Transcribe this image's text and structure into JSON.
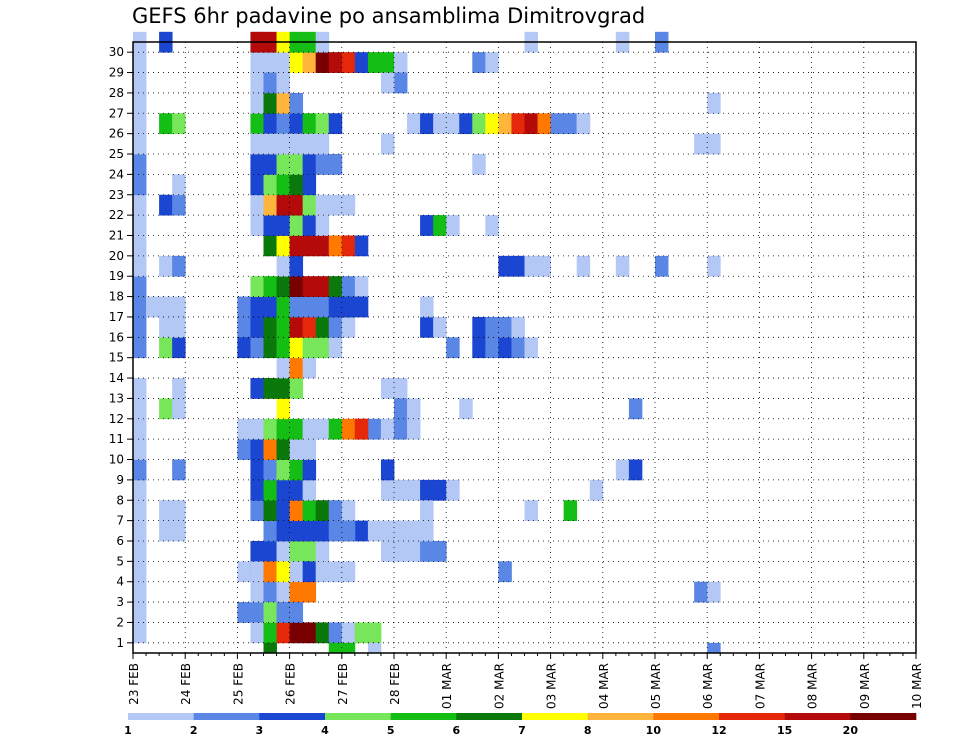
{
  "chart_data": {
    "type": "heatmap",
    "title": "GEFS 6hr padavine po ansamblima Dimitrovgrad",
    "xlabel": "",
    "ylabel": "",
    "y_ticks": [
      "1",
      "2",
      "3",
      "4",
      "5",
      "6",
      "7",
      "8",
      "9",
      "10",
      "11",
      "12",
      "13",
      "14",
      "15",
      "16",
      "17",
      "18",
      "19",
      "20",
      "21",
      "22",
      "23",
      "24",
      "25",
      "26",
      "27",
      "28",
      "29",
      "30"
    ],
    "x_ticks": [
      "23 FEB",
      "24 FEB",
      "25 FEB",
      "26 FEB",
      "27 FEB",
      "28 FEB",
      "01 MAR",
      "02 MAR",
      "03 MAR",
      "04 MAR",
      "05 MAR",
      "06 MAR",
      "07 MAR",
      "08 MAR",
      "09 MAR",
      "10 MAR"
    ],
    "x_range": [
      0,
      60
    ],
    "y_range": [
      1,
      30
    ],
    "time_step": "6hr",
    "grid": true,
    "colorbar": {
      "levels": [
        "1",
        "2",
        "3",
        "4",
        "5",
        "6",
        "7",
        "8",
        "10",
        "12",
        "15",
        "20"
      ],
      "colors": [
        "#b4c8f5",
        "#5a86e6",
        "#1a46d2",
        "#78e65a",
        "#14be14",
        "#0a780a",
        "#ffff00",
        "#ffb43c",
        "#ff7800",
        "#e6280a",
        "#b40a0a",
        "#780000"
      ]
    },
    "cells": [
      [
        0,
        1,
        1
      ],
      [
        0,
        2,
        1
      ],
      [
        0,
        3,
        1
      ],
      [
        0,
        4,
        1
      ],
      [
        0,
        5,
        1
      ],
      [
        0,
        6,
        1
      ],
      [
        0,
        7,
        1
      ],
      [
        0,
        8,
        1
      ],
      [
        0,
        9,
        2
      ],
      [
        0,
        10,
        1
      ],
      [
        0,
        11,
        1
      ],
      [
        0,
        12,
        1
      ],
      [
        0,
        13,
        1
      ],
      [
        0,
        15,
        2
      ],
      [
        0,
        16,
        2
      ],
      [
        0,
        17,
        2
      ],
      [
        0,
        18,
        2
      ],
      [
        0,
        19,
        1
      ],
      [
        0,
        20,
        1
      ],
      [
        0,
        21,
        1
      ],
      [
        0,
        22,
        1
      ],
      [
        0,
        23,
        2
      ],
      [
        0,
        24,
        2
      ],
      [
        0,
        25,
        1
      ],
      [
        0,
        26,
        1
      ],
      [
        0,
        27,
        1
      ],
      [
        0,
        28,
        1
      ],
      [
        0,
        29,
        1
      ],
      [
        0,
        30,
        1
      ],
      [
        2,
        7,
        1
      ],
      [
        2,
        6,
        1
      ],
      [
        2,
        12,
        4
      ],
      [
        2,
        15,
        4
      ],
      [
        2,
        16,
        1
      ],
      [
        2,
        17,
        1
      ],
      [
        2,
        19,
        1
      ],
      [
        2,
        22,
        3
      ],
      [
        2,
        26,
        5
      ],
      [
        2,
        30,
        3
      ],
      [
        3,
        6,
        1
      ],
      [
        3,
        7,
        1
      ],
      [
        3,
        9,
        2
      ],
      [
        3,
        12,
        1
      ],
      [
        3,
        13,
        1
      ],
      [
        3,
        15,
        3
      ],
      [
        3,
        16,
        1
      ],
      [
        3,
        17,
        1
      ],
      [
        3,
        19,
        2
      ],
      [
        3,
        22,
        2
      ],
      [
        3,
        23,
        1
      ],
      [
        3,
        26,
        4
      ],
      [
        1,
        17,
        1
      ],
      [
        8,
        10,
        2
      ],
      [
        8,
        11,
        1
      ],
      [
        8,
        17,
        2
      ],
      [
        8,
        16,
        2
      ],
      [
        8,
        15,
        3
      ],
      [
        8,
        4,
        1
      ],
      [
        8,
        2,
        2
      ],
      [
        9,
        11,
        1
      ],
      [
        9,
        18,
        1
      ],
      [
        9,
        17,
        1
      ],
      [
        9,
        2,
        2
      ],
      [
        9,
        4,
        3
      ],
      [
        9,
        9,
        1
      ],
      [
        9,
        22,
        1
      ],
      [
        9,
        24,
        2
      ],
      [
        9,
        30,
        1
      ],
      [
        9,
        5,
        3
      ],
      [
        10,
        5,
        3
      ],
      [
        11,
        5,
        1
      ],
      [
        12,
        5,
        4
      ],
      [
        13,
        5,
        4
      ],
      [
        14,
        5,
        1
      ],
      [
        9,
        29,
        1
      ],
      [
        10,
        29,
        1
      ],
      [
        11,
        29,
        1
      ],
      [
        12,
        29,
        7
      ],
      [
        13,
        29,
        8
      ],
      [
        14,
        29,
        12
      ],
      [
        15,
        29,
        11
      ],
      [
        16,
        29,
        10
      ],
      [
        17,
        29,
        3
      ],
      [
        18,
        29,
        5
      ],
      [
        19,
        29,
        5
      ],
      [
        20,
        29,
        1
      ],
      [
        9,
        26,
        5
      ],
      [
        10,
        26,
        3
      ],
      [
        11,
        26,
        2
      ],
      [
        12,
        26,
        3
      ],
      [
        13,
        26,
        5
      ],
      [
        14,
        26,
        4
      ],
      [
        15,
        26,
        3
      ],
      [
        9,
        30,
        11
      ],
      [
        10,
        30,
        11
      ],
      [
        11,
        30,
        7
      ],
      [
        12,
        30,
        5
      ],
      [
        13,
        30,
        5
      ],
      [
        14,
        30,
        1
      ],
      [
        9,
        1,
        1
      ],
      [
        10,
        1,
        5
      ],
      [
        11,
        1,
        10
      ],
      [
        12,
        1,
        12
      ],
      [
        13,
        1,
        12
      ],
      [
        14,
        1,
        6
      ],
      [
        15,
        1,
        2
      ],
      [
        16,
        1,
        1
      ],
      [
        17,
        1,
        4
      ],
      [
        18,
        1,
        4
      ],
      [
        9,
        3,
        1
      ],
      [
        10,
        3,
        2
      ],
      [
        11,
        3,
        1
      ],
      [
        12,
        3,
        9
      ],
      [
        13,
        3,
        9
      ],
      [
        9,
        4,
        1
      ],
      [
        10,
        4,
        9
      ],
      [
        11,
        4,
        7
      ],
      [
        12,
        4,
        1
      ],
      [
        13,
        4,
        3
      ],
      [
        14,
        4,
        1
      ],
      [
        15,
        4,
        1
      ],
      [
        16,
        4,
        1
      ],
      [
        10,
        6,
        2
      ],
      [
        11,
        6,
        3
      ],
      [
        12,
        6,
        3
      ],
      [
        13,
        6,
        3
      ],
      [
        14,
        6,
        3
      ],
      [
        15,
        6,
        2
      ],
      [
        16,
        6,
        2
      ],
      [
        17,
        6,
        3
      ],
      [
        18,
        6,
        1
      ],
      [
        19,
        6,
        1
      ],
      [
        20,
        6,
        1
      ],
      [
        9,
        7,
        2
      ],
      [
        10,
        7,
        6
      ],
      [
        11,
        7,
        3
      ],
      [
        12,
        7,
        9
      ],
      [
        13,
        7,
        5
      ],
      [
        14,
        7,
        6
      ],
      [
        15,
        7,
        2
      ],
      [
        16,
        7,
        1
      ],
      [
        9,
        8,
        3
      ],
      [
        10,
        8,
        5
      ],
      [
        11,
        8,
        3
      ],
      [
        12,
        8,
        3
      ],
      [
        13,
        8,
        1
      ],
      [
        9,
        9,
        3
      ],
      [
        10,
        9,
        2
      ],
      [
        11,
        9,
        4
      ],
      [
        12,
        9,
        5
      ],
      [
        13,
        9,
        3
      ],
      [
        9,
        10,
        3
      ],
      [
        10,
        10,
        9
      ],
      [
        11,
        10,
        6
      ],
      [
        12,
        10,
        1
      ],
      [
        13,
        10,
        1
      ],
      [
        9,
        11,
        1
      ],
      [
        10,
        11,
        4
      ],
      [
        11,
        11,
        5
      ],
      [
        12,
        11,
        5
      ],
      [
        13,
        11,
        1
      ],
      [
        14,
        11,
        1
      ],
      [
        15,
        11,
        5
      ],
      [
        16,
        11,
        9
      ],
      [
        17,
        11,
        10
      ],
      [
        18,
        11,
        2
      ],
      [
        19,
        11,
        1
      ],
      [
        20,
        11,
        1
      ],
      [
        11,
        12,
        7
      ],
      [
        9,
        13,
        3
      ],
      [
        10,
        13,
        6
      ],
      [
        11,
        13,
        6
      ],
      [
        12,
        13,
        4
      ],
      [
        11,
        14,
        1
      ],
      [
        12,
        14,
        9
      ],
      [
        13,
        14,
        1
      ],
      [
        9,
        15,
        2
      ],
      [
        10,
        15,
        6
      ],
      [
        11,
        15,
        5
      ],
      [
        12,
        15,
        7
      ],
      [
        13,
        15,
        4
      ],
      [
        14,
        15,
        4
      ],
      [
        15,
        15,
        1
      ],
      [
        9,
        16,
        3
      ],
      [
        10,
        16,
        6
      ],
      [
        11,
        16,
        5
      ],
      [
        12,
        16,
        11
      ],
      [
        13,
        16,
        10
      ],
      [
        14,
        16,
        6
      ],
      [
        15,
        16,
        2
      ],
      [
        16,
        16,
        1
      ],
      [
        9,
        17,
        3
      ],
      [
        10,
        17,
        3
      ],
      [
        11,
        17,
        5
      ],
      [
        12,
        17,
        2
      ],
      [
        13,
        17,
        2
      ],
      [
        14,
        17,
        2
      ],
      [
        15,
        17,
        3
      ],
      [
        16,
        17,
        3
      ],
      [
        17,
        17,
        1
      ],
      [
        9,
        18,
        4
      ],
      [
        10,
        18,
        5
      ],
      [
        11,
        18,
        6
      ],
      [
        12,
        18,
        12
      ],
      [
        13,
        18,
        11
      ],
      [
        14,
        18,
        11
      ],
      [
        15,
        18,
        6
      ],
      [
        16,
        18,
        2
      ],
      [
        17,
        18,
        1
      ],
      [
        11,
        19,
        1
      ],
      [
        12,
        19,
        3
      ],
      [
        10,
        20,
        6
      ],
      [
        11,
        20,
        7
      ],
      [
        12,
        20,
        11
      ],
      [
        13,
        20,
        11
      ],
      [
        14,
        20,
        11
      ],
      [
        15,
        20,
        9
      ],
      [
        16,
        20,
        10
      ],
      [
        17,
        20,
        3
      ],
      [
        9,
        21,
        1
      ],
      [
        10,
        21,
        3
      ],
      [
        11,
        21,
        3
      ],
      [
        12,
        21,
        4
      ],
      [
        13,
        21,
        3
      ],
      [
        14,
        21,
        1
      ],
      [
        9,
        22,
        1
      ],
      [
        10,
        22,
        8
      ],
      [
        11,
        22,
        11
      ],
      [
        12,
        22,
        11
      ],
      [
        13,
        22,
        4
      ],
      [
        14,
        22,
        1
      ],
      [
        15,
        22,
        1
      ],
      [
        16,
        22,
        1
      ],
      [
        9,
        23,
        3
      ],
      [
        10,
        23,
        4
      ],
      [
        11,
        23,
        5
      ],
      [
        12,
        23,
        6
      ],
      [
        13,
        23,
        3
      ],
      [
        9,
        24,
        3
      ],
      [
        10,
        24,
        3
      ],
      [
        11,
        24,
        4
      ],
      [
        12,
        24,
        4
      ],
      [
        13,
        24,
        3
      ],
      [
        14,
        24,
        2
      ],
      [
        15,
        24,
        2
      ],
      [
        9,
        25,
        1
      ],
      [
        10,
        25,
        1
      ],
      [
        11,
        25,
        1
      ],
      [
        12,
        25,
        1
      ],
      [
        13,
        25,
        1
      ],
      [
        14,
        25,
        1
      ],
      [
        9,
        27,
        1
      ],
      [
        10,
        27,
        6
      ],
      [
        11,
        27,
        8
      ],
      [
        12,
        27,
        2
      ],
      [
        9,
        28,
        1
      ],
      [
        10,
        28,
        2
      ],
      [
        11,
        28,
        1
      ],
      [
        10,
        2,
        4
      ],
      [
        11,
        2,
        2
      ],
      [
        12,
        2,
        2
      ],
      [
        10,
        0,
        6
      ],
      [
        15,
        0,
        5
      ],
      [
        16,
        0,
        5
      ],
      [
        18,
        0,
        1
      ],
      [
        16,
        17,
        3
      ],
      [
        17,
        17,
        3
      ],
      [
        16,
        6,
        2
      ],
      [
        20,
        6,
        1
      ],
      [
        21,
        6,
        1
      ],
      [
        17,
        11,
        10
      ],
      [
        19,
        5,
        1
      ],
      [
        20,
        5,
        1
      ],
      [
        21,
        5,
        1
      ],
      [
        22,
        5,
        2
      ],
      [
        23,
        5,
        2
      ],
      [
        19,
        8,
        1
      ],
      [
        20,
        8,
        1
      ],
      [
        21,
        8,
        1
      ],
      [
        22,
        8,
        3
      ],
      [
        23,
        8,
        3
      ],
      [
        24,
        8,
        1
      ],
      [
        19,
        9,
        3
      ],
      [
        19,
        11,
        1
      ],
      [
        19,
        13,
        1
      ],
      [
        20,
        13,
        1
      ],
      [
        20,
        12,
        2
      ],
      [
        21,
        12,
        1
      ],
      [
        20,
        11,
        2
      ],
      [
        21,
        11,
        1
      ],
      [
        19,
        25,
        1
      ],
      [
        20,
        28,
        2
      ],
      [
        19,
        28,
        1
      ],
      [
        22,
        7,
        1
      ],
      [
        22,
        6,
        1
      ],
      [
        22,
        16,
        3
      ],
      [
        23,
        16,
        1
      ],
      [
        22,
        17,
        1
      ],
      [
        22,
        21,
        3
      ],
      [
        23,
        21,
        5
      ],
      [
        24,
        21,
        1
      ],
      [
        21,
        26,
        1
      ],
      [
        22,
        26,
        3
      ],
      [
        23,
        26,
        1
      ],
      [
        24,
        26,
        1
      ],
      [
        25,
        26,
        3
      ],
      [
        26,
        26,
        4
      ],
      [
        27,
        26,
        7
      ],
      [
        28,
        26,
        8
      ],
      [
        29,
        26,
        10
      ],
      [
        30,
        26,
        11
      ],
      [
        31,
        26,
        9
      ],
      [
        32,
        26,
        2
      ],
      [
        33,
        26,
        2
      ],
      [
        34,
        26,
        1
      ],
      [
        24,
        15,
        2
      ],
      [
        26,
        15,
        3
      ],
      [
        27,
        15,
        2
      ],
      [
        28,
        15,
        3
      ],
      [
        29,
        15,
        2
      ],
      [
        30,
        15,
        1
      ],
      [
        26,
        16,
        3
      ],
      [
        27,
        16,
        2
      ],
      [
        28,
        16,
        2
      ],
      [
        29,
        16,
        1
      ],
      [
        26,
        29,
        2
      ],
      [
        27,
        29,
        1
      ],
      [
        26,
        24,
        1
      ],
      [
        27,
        21,
        1
      ],
      [
        25,
        12,
        1
      ],
      [
        28,
        19,
        3
      ],
      [
        29,
        19,
        3
      ],
      [
        30,
        19,
        1
      ],
      [
        28,
        4,
        2
      ],
      [
        30,
        7,
        1
      ],
      [
        30,
        30,
        1
      ],
      [
        33,
        7,
        5
      ],
      [
        35,
        8,
        1
      ],
      [
        34,
        26,
        1
      ],
      [
        37,
        9,
        1
      ],
      [
        38,
        9,
        3
      ],
      [
        38,
        12,
        2
      ],
      [
        31,
        19,
        1
      ],
      [
        34,
        19,
        1
      ],
      [
        37,
        19,
        1
      ],
      [
        40,
        19,
        2
      ],
      [
        44,
        19,
        1
      ],
      [
        37,
        30,
        1
      ],
      [
        40,
        30,
        2
      ],
      [
        44,
        27,
        1
      ],
      [
        44,
        25,
        1
      ],
      [
        43,
        25,
        1
      ],
      [
        43,
        3,
        2
      ],
      [
        44,
        3,
        1
      ],
      [
        44,
        0,
        2
      ]
    ]
  }
}
